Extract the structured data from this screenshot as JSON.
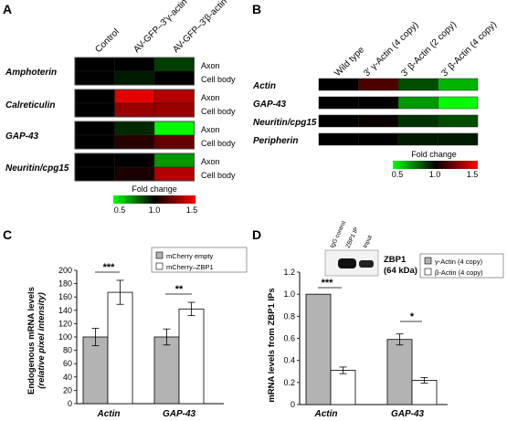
{
  "colors": {
    "low": "#00ff00",
    "mid": "#000000",
    "high": "#ff0000",
    "grey_bar": "#b3b3b3",
    "white_bar": "#ffffff"
  },
  "panel_labels": [
    "A",
    "B",
    "C",
    "D"
  ],
  "chart_data": [
    {
      "panel": "A",
      "type": "heatmap",
      "columns": [
        "Control",
        "AV-GFP–3′γ-actin",
        "AV-GFP–3′β-actin"
      ],
      "genes": [
        "Amphoterin",
        "Calreticulin",
        "GAP-43",
        "Neuritin/cpg15"
      ],
      "compartments": [
        "Axon",
        "Cell body"
      ],
      "values": [
        [
          [
            1.0,
            1.0,
            0.88
          ],
          [
            1.0,
            0.95,
            1.0
          ]
        ],
        [
          [
            1.0,
            1.45,
            1.35
          ],
          [
            1.0,
            1.3,
            1.3
          ]
        ],
        [
          [
            1.0,
            0.92,
            0.5
          ],
          [
            1.0,
            1.08,
            1.2
          ]
        ],
        [
          [
            1.0,
            1.0,
            0.7
          ],
          [
            1.0,
            1.05,
            1.35
          ]
        ]
      ],
      "scale": {
        "title": "Fold change",
        "ticks": [
          "0.5",
          "1.0",
          "1.5"
        ],
        "min": 0.5,
        "max": 1.5
      }
    },
    {
      "panel": "B",
      "type": "heatmap",
      "columns": [
        "Wild type",
        "3′ γ-Actin (4 copy)",
        "3′ β-Actin (2 copy)",
        "3′ β-Actin (4 copy)"
      ],
      "rows": [
        "Actin",
        "GAP-43",
        "Neuritin/cpg15",
        "Peripherin"
      ],
      "values": [
        [
          1.0,
          1.15,
          0.85,
          0.65
        ],
        [
          1.0,
          1.0,
          0.7,
          0.45
        ],
        [
          1.0,
          1.02,
          0.9,
          0.85
        ],
        [
          1.0,
          1.0,
          0.95,
          0.95
        ]
      ],
      "scale": {
        "title": "Fold change",
        "ticks": [
          "0.5",
          "1.0",
          "1.5"
        ],
        "min": 0.5,
        "max": 1.5
      }
    },
    {
      "panel": "C",
      "type": "bar",
      "categories": [
        "Actin",
        "GAP-43"
      ],
      "series": [
        {
          "name": "mCherry empty",
          "values": [
            100,
            100
          ],
          "errors": [
            13,
            12
          ]
        },
        {
          "name": "mCherry–ZBP1",
          "values": [
            167,
            142
          ],
          "errors": [
            18,
            10
          ]
        }
      ],
      "ylabel": "Endogenous mRNA levels",
      "ylabel2": "(relative pixel intensity)",
      "ylim": [
        0,
        200
      ],
      "yticks": [
        0,
        20,
        40,
        60,
        80,
        100,
        120,
        140,
        160,
        180,
        200
      ],
      "significance": [
        "***",
        "**"
      ],
      "legend_position": "top-right"
    },
    {
      "panel": "D",
      "type": "bar",
      "categories": [
        "Actin",
        "GAP-43"
      ],
      "series": [
        {
          "name": "γ-Actin (4 copy)",
          "values": [
            1.0,
            0.59
          ],
          "errors": [
            0,
            0.05
          ]
        },
        {
          "name": "β-Actin (4 copy)",
          "values": [
            0.31,
            0.22
          ],
          "errors": [
            0.03,
            0.025
          ]
        }
      ],
      "ylabel": "mRNA levels from ZBP1 IPs",
      "ylim": [
        0,
        1.2
      ],
      "yticks": [
        "0",
        "0.2",
        "0.4",
        "0.6",
        "0.8",
        "1.0",
        "1.2"
      ],
      "significance": [
        "***",
        "*"
      ],
      "blot": {
        "lanes": [
          "IgG control",
          "ZBP1 IP",
          "Input"
        ],
        "label": "ZBP1",
        "sublabel": "(64 kDa)"
      },
      "legend_position": "top-right"
    }
  ]
}
